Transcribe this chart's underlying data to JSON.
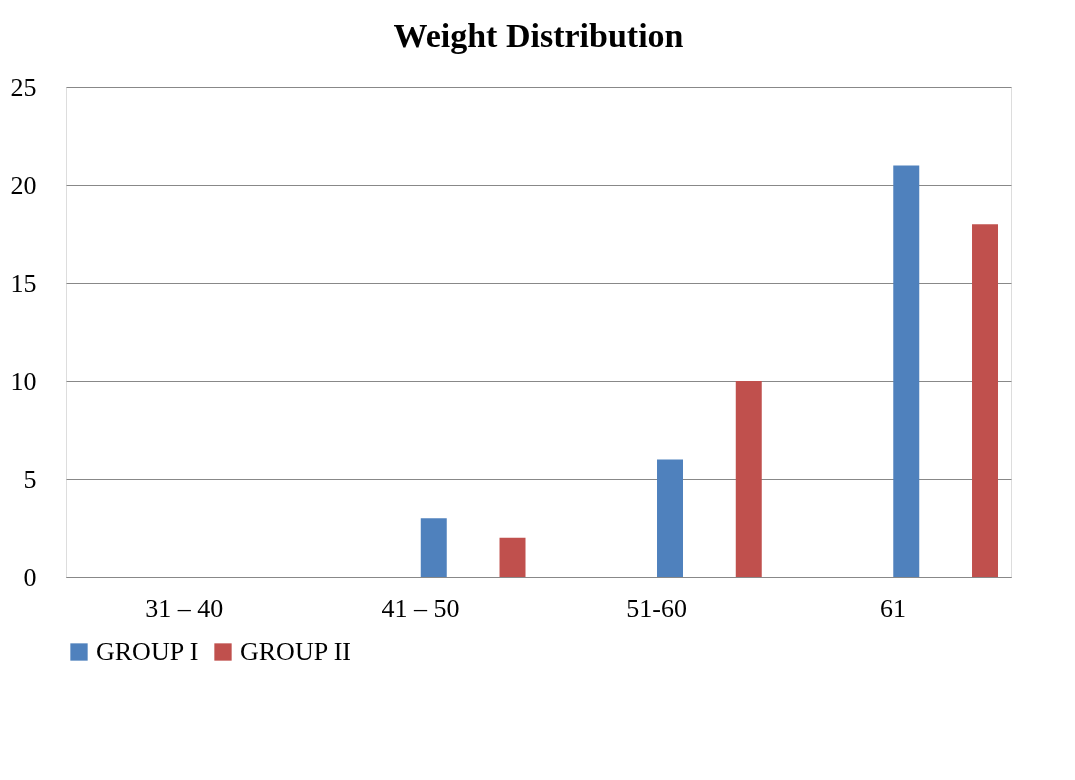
{
  "chart_data": {
    "type": "bar",
    "title": "Weight Distribution",
    "categories": [
      "31 – 40",
      "41 – 50",
      "51-60",
      "61"
    ],
    "series": [
      {
        "name": "GROUP I",
        "color": "#4f81bd",
        "values": [
          0,
          3,
          6,
          21
        ]
      },
      {
        "name": "GROUP II",
        "color": "#c0504d",
        "values": [
          0,
          2,
          10,
          18
        ]
      }
    ],
    "ylim": [
      0,
      25
    ],
    "yticks": [
      0,
      5,
      10,
      15,
      20,
      25
    ],
    "grid": "y",
    "legend": "bottom"
  }
}
